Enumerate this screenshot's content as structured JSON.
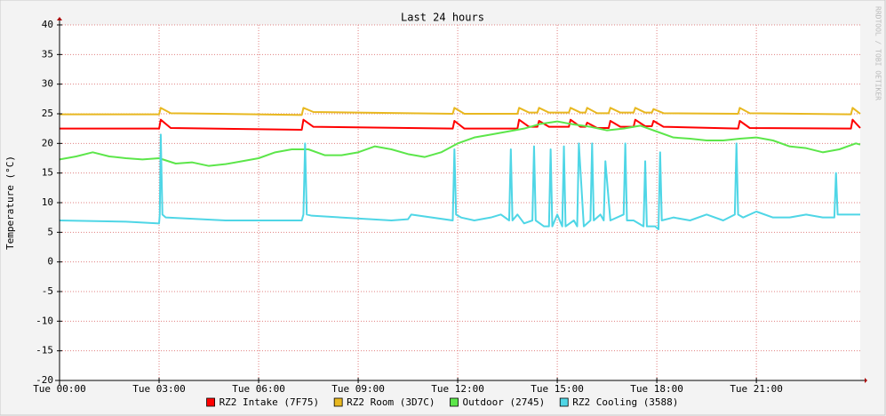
{
  "chart_data": {
    "type": "line",
    "title": "Last 24 hours",
    "y_label": "Temperature (°C)",
    "watermark": "RRDTOOL / TOBI OETIKER",
    "xlim": [
      0,
      24.13
    ],
    "ylim": [
      -20,
      40
    ],
    "xticks": [
      {
        "value": 0,
        "label": "Tue 00:00"
      },
      {
        "value": 3,
        "label": "Tue 03:00"
      },
      {
        "value": 6,
        "label": "Tue 06:00"
      },
      {
        "value": 9,
        "label": "Tue 09:00"
      },
      {
        "value": 12,
        "label": "Tue 12:00"
      },
      {
        "value": 15,
        "label": "Tue 15:00"
      },
      {
        "value": 18,
        "label": "Tue 18:00"
      },
      {
        "value": 21,
        "label": "Tue 21:00"
      }
    ],
    "yticks": [
      -20,
      -15,
      -10,
      -5,
      0,
      5,
      10,
      15,
      20,
      25,
      30,
      35,
      40
    ],
    "grid": true,
    "series": [
      {
        "name": "RZ2 Intake (7F75)",
        "color": "#ff0000",
        "x": [
          0,
          3,
          3.05,
          3.35,
          7.3,
          7.35,
          7.65,
          11.85,
          11.9,
          12.2,
          13.8,
          13.85,
          14.15,
          14.4,
          14.45,
          14.75,
          15.35,
          15.4,
          15.7,
          15.85,
          15.9,
          16.2,
          16.55,
          16.6,
          16.9,
          17.3,
          17.35,
          17.65,
          17.85,
          17.9,
          18.2,
          20.45,
          20.5,
          20.8,
          23.85,
          23.9,
          24.13
        ],
        "values": [
          22.5,
          22.5,
          24,
          22.6,
          22.3,
          24,
          22.8,
          22.5,
          23.8,
          22.5,
          22.5,
          24,
          22.8,
          22.8,
          23.8,
          22.8,
          22.8,
          24,
          22.8,
          22.8,
          23.5,
          22.6,
          22.6,
          23.8,
          22.8,
          22.8,
          24,
          22.9,
          22.9,
          23.8,
          22.8,
          22.5,
          23.8,
          22.6,
          22.5,
          24,
          22.6
        ]
      },
      {
        "name": "RZ2 Room (3D7C)",
        "color": "#e8b820",
        "x": [
          0,
          3,
          3.05,
          3.35,
          7.3,
          7.35,
          7.65,
          11.85,
          11.9,
          12.2,
          13.8,
          13.85,
          14.15,
          14.4,
          14.45,
          14.75,
          15.35,
          15.4,
          15.7,
          15.85,
          15.9,
          16.2,
          16.55,
          16.6,
          16.9,
          17.3,
          17.35,
          17.65,
          17.85,
          17.9,
          18.2,
          20.45,
          20.5,
          20.8,
          23.85,
          23.9,
          24.13
        ],
        "values": [
          24.9,
          24.9,
          26,
          25.1,
          24.8,
          26,
          25.3,
          25,
          26,
          25,
          25,
          26,
          25.2,
          25.2,
          26,
          25.2,
          25.2,
          26,
          25.2,
          25.2,
          26,
          25.1,
          25.1,
          26,
          25.2,
          25.2,
          26,
          25.2,
          25.2,
          25.8,
          25.1,
          25,
          26,
          25.1,
          24.9,
          26,
          25
        ]
      },
      {
        "name": "Outdoor (2745)",
        "color": "#5ce64a",
        "x": [
          0,
          0.5,
          1,
          1.5,
          2,
          2.5,
          3,
          3.5,
          4,
          4.5,
          5,
          5.5,
          6,
          6.5,
          7,
          7.5,
          8,
          8.5,
          9,
          9.5,
          10,
          10.5,
          11,
          11.5,
          12,
          12.5,
          13,
          13.5,
          14,
          14.5,
          15,
          15.5,
          16,
          16.5,
          17,
          17.5,
          18,
          18.5,
          19,
          19.5,
          20,
          20.5,
          21,
          21.5,
          22,
          22.5,
          23,
          23.5,
          24,
          24.13
        ],
        "values": [
          17.3,
          17.8,
          18.5,
          17.8,
          17.5,
          17.3,
          17.5,
          16.6,
          16.8,
          16.2,
          16.5,
          17,
          17.5,
          18.5,
          19,
          19,
          18,
          18,
          18.5,
          19.5,
          19,
          18.2,
          17.7,
          18.5,
          20,
          21,
          21.5,
          22,
          22.5,
          23.3,
          23.7,
          23.2,
          22.8,
          22.2,
          22.5,
          23,
          22,
          21,
          20.8,
          20.5,
          20.5,
          20.8,
          21,
          20.5,
          19.5,
          19.2,
          18.5,
          19,
          20,
          19.8
        ]
      },
      {
        "name": "RZ2 Cooling (3588)",
        "color": "#4fd6e6",
        "x": [
          0,
          2,
          3,
          3.02,
          3.05,
          3.1,
          3.2,
          5,
          7.3,
          7.35,
          7.4,
          7.45,
          7.6,
          10,
          10.5,
          10.6,
          11.85,
          11.9,
          11.95,
          12.1,
          12.5,
          13,
          13.3,
          13.55,
          13.6,
          13.65,
          13.8,
          14,
          14.25,
          14.3,
          14.35,
          14.6,
          14.75,
          14.8,
          14.85,
          15,
          15.15,
          15.2,
          15.25,
          15.5,
          15.6,
          15.65,
          15.8,
          16,
          16.05,
          16.1,
          16.3,
          16.4,
          16.45,
          16.6,
          17,
          17.05,
          17.1,
          17.3,
          17.6,
          17.65,
          17.7,
          17.95,
          18.05,
          18.1,
          18.15,
          18.5,
          19,
          19.5,
          20,
          20.35,
          20.4,
          20.45,
          20.6,
          21,
          21.5,
          22,
          22.5,
          23,
          23.35,
          23.4,
          23.45,
          23.7,
          24.13
        ],
        "values": [
          7,
          6.8,
          6.5,
          8,
          21.5,
          8,
          7.5,
          7,
          7,
          8,
          20,
          8,
          7.8,
          7,
          7.2,
          8,
          7,
          19,
          8,
          7.5,
          7,
          7.5,
          8,
          7,
          19,
          7,
          8,
          6.5,
          7,
          19.5,
          7,
          6,
          6,
          19,
          6,
          8,
          6,
          19.5,
          6,
          7,
          6,
          20,
          6,
          7,
          20,
          7,
          8,
          7,
          17,
          7,
          8,
          20,
          7,
          7,
          6,
          17,
          6,
          6,
          5.5,
          18.5,
          7,
          7.5,
          7,
          8,
          7,
          8,
          20,
          8,
          7.5,
          8.5,
          7.5,
          7.5,
          8,
          7.5,
          7.5,
          15,
          8,
          8,
          8
        ]
      }
    ]
  }
}
